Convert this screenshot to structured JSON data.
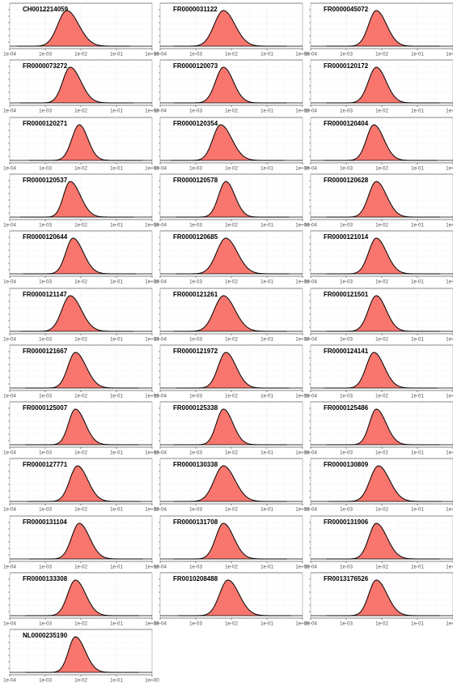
{
  "chart_data": {
    "type": "area",
    "plot": "density",
    "x_scale": "log10",
    "xlim": [
      "1e-04",
      "1e+00"
    ],
    "x_ticks": [
      "1e-04",
      "1e-03",
      "1e-02",
      "1e-01",
      "1e+00"
    ],
    "grid": true,
    "fill_color": "#F8766D",
    "line_color": "#000000",
    "panels": [
      {
        "title": "CH0012214059",
        "peak": "4e-03",
        "width": 0.28,
        "skew": 0.2
      },
      {
        "title": "FR0000031122",
        "peak": "6e-03",
        "width": 0.28,
        "skew": 0.15
      },
      {
        "title": "FR0000045072",
        "peak": "7e-03",
        "width": 0.24,
        "skew": 0.2
      },
      {
        "title": "FR0000073272",
        "peak": "5e-03",
        "width": 0.24,
        "skew": 0.25
      },
      {
        "title": "FR0000120073",
        "peak": "6e-03",
        "width": 0.24,
        "skew": 0.15
      },
      {
        "title": "FR0000120172",
        "peak": "7e-03",
        "width": 0.24,
        "skew": 0.15
      },
      {
        "title": "FR0000120271",
        "peak": "9e-03",
        "width": 0.22,
        "skew": 0.1
      },
      {
        "title": "FR0000120354",
        "peak": "5e-03",
        "width": 0.25,
        "skew": 0.25
      },
      {
        "title": "FR0000120404",
        "peak": "6e-03",
        "width": 0.23,
        "skew": 0.2
      },
      {
        "title": "FR0000120537",
        "peak": "5e-03",
        "width": 0.22,
        "skew": 0.3
      },
      {
        "title": "FR0000120578",
        "peak": "7e-03",
        "width": 0.22,
        "skew": 0.15
      },
      {
        "title": "FR0000120628",
        "peak": "7e-03",
        "width": 0.24,
        "skew": 0.2
      },
      {
        "title": "FR0000120644",
        "peak": "6e-03",
        "width": 0.23,
        "skew": 0.25
      },
      {
        "title": "FR0000120685",
        "peak": "7e-03",
        "width": 0.28,
        "skew": 0.15
      },
      {
        "title": "FR0000121014",
        "peak": "7e-03",
        "width": 0.24,
        "skew": 0.2
      },
      {
        "title": "FR0000121147",
        "peak": "5e-03",
        "width": 0.26,
        "skew": 0.2
      },
      {
        "title": "FR0000121261",
        "peak": "6e-03",
        "width": 0.28,
        "skew": 0.15
      },
      {
        "title": "FR0000121501",
        "peak": "7e-03",
        "width": 0.24,
        "skew": 0.15
      },
      {
        "title": "FR0000121667",
        "peak": "7e-03",
        "width": 0.24,
        "skew": 0.25
      },
      {
        "title": "FR0000121972",
        "peak": "7e-03",
        "width": 0.24,
        "skew": 0.2
      },
      {
        "title": "FR0000124141",
        "peak": "6e-03",
        "width": 0.24,
        "skew": 0.2
      },
      {
        "title": "FR0000125007",
        "peak": "7e-03",
        "width": 0.22,
        "skew": 0.25
      },
      {
        "title": "FR0000125338",
        "peak": "6e-03",
        "width": 0.22,
        "skew": 0.2
      },
      {
        "title": "FR0000125486",
        "peak": "7e-03",
        "width": 0.22,
        "skew": 0.25
      },
      {
        "title": "FR0000127771",
        "peak": "8e-03",
        "width": 0.24,
        "skew": 0.2
      },
      {
        "title": "FR0000130338",
        "peak": "6e-03",
        "width": 0.28,
        "skew": 0.15
      },
      {
        "title": "FR0000130809",
        "peak": "8e-03",
        "width": 0.26,
        "skew": 0.2
      },
      {
        "title": "FR0000131104",
        "peak": "9e-03",
        "width": 0.24,
        "skew": 0.2
      },
      {
        "title": "FR0000131708",
        "peak": "6e-03",
        "width": 0.24,
        "skew": 0.2
      },
      {
        "title": "FR0000131906",
        "peak": "7e-03",
        "width": 0.24,
        "skew": 0.25
      },
      {
        "title": "FR0000133308",
        "peak": "7e-03",
        "width": 0.24,
        "skew": 0.2
      },
      {
        "title": "FR0010208488",
        "peak": "8e-03",
        "width": 0.26,
        "skew": 0.2
      },
      {
        "title": "FR0013176526",
        "peak": "7e-03",
        "width": 0.24,
        "skew": 0.25
      },
      {
        "title": "NL0000235190",
        "peak": "7e-03",
        "width": 0.22,
        "skew": 0.25
      }
    ]
  }
}
